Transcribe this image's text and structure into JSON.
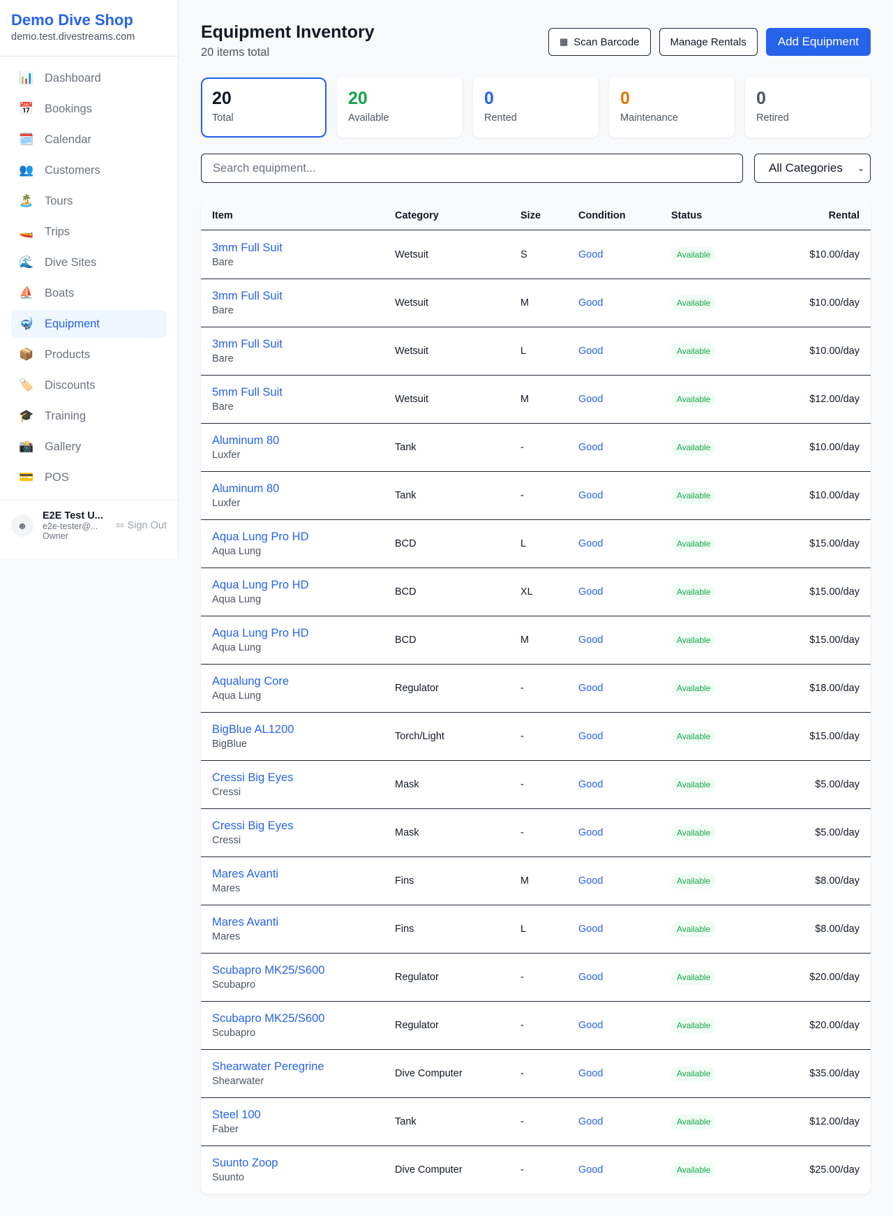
{
  "sidebar": {
    "brand": "Demo Dive Shop",
    "domain": "demo.test.divestreams.com",
    "items": [
      {
        "icon": "📊",
        "label": "Dashboard"
      },
      {
        "icon": "📅",
        "label": "Bookings"
      },
      {
        "icon": "🗓️",
        "label": "Calendar"
      },
      {
        "icon": "👥",
        "label": "Customers"
      },
      {
        "icon": "🏝️",
        "label": "Tours"
      },
      {
        "icon": "🚤",
        "label": "Trips"
      },
      {
        "icon": "🌊",
        "label": "Dive Sites"
      },
      {
        "icon": "⛵",
        "label": "Boats"
      },
      {
        "icon": "🤿",
        "label": "Equipment",
        "active": true
      },
      {
        "icon": "📦",
        "label": "Products"
      },
      {
        "icon": "🏷️",
        "label": "Discounts"
      },
      {
        "icon": "🎓",
        "label": "Training"
      },
      {
        "icon": "📸",
        "label": "Gallery"
      },
      {
        "icon": "💳",
        "label": "POS"
      }
    ],
    "user": {
      "name": "E2E Test U...",
      "email": "e2e-tester@...",
      "role": "Owner",
      "signout": "Sign Out"
    }
  },
  "header": {
    "title": "Equipment Inventory",
    "subtitle": "20 items total",
    "scan": "Scan Barcode",
    "manage": "Manage Rentals",
    "add": "Add Equipment"
  },
  "stats": [
    {
      "value": "20",
      "label": "Total",
      "color": "#111827"
    },
    {
      "value": "20",
      "label": "Available",
      "color": "#16a34a"
    },
    {
      "value": "0",
      "label": "Rented",
      "color": "#2563eb"
    },
    {
      "value": "0",
      "label": "Maintenance",
      "color": "#d97706"
    },
    {
      "value": "0",
      "label": "Retired",
      "color": "#4b5563"
    }
  ],
  "filters": {
    "search_placeholder": "Search equipment...",
    "category": "All Categories"
  },
  "table": {
    "headers": [
      "Item",
      "Category",
      "Size",
      "Condition",
      "Status",
      "Rental"
    ],
    "rows": [
      [
        "3mm Full Suit",
        "Bare",
        "Wetsuit",
        "S",
        "Good",
        "Available",
        "$10.00/day"
      ],
      [
        "3mm Full Suit",
        "Bare",
        "Wetsuit",
        "M",
        "Good",
        "Available",
        "$10.00/day"
      ],
      [
        "3mm Full Suit",
        "Bare",
        "Wetsuit",
        "L",
        "Good",
        "Available",
        "$10.00/day"
      ],
      [
        "5mm Full Suit",
        "Bare",
        "Wetsuit",
        "M",
        "Good",
        "Available",
        "$12.00/day"
      ],
      [
        "Aluminum 80",
        "Luxfer",
        "Tank",
        "-",
        "Good",
        "Available",
        "$10.00/day"
      ],
      [
        "Aluminum 80",
        "Luxfer",
        "Tank",
        "-",
        "Good",
        "Available",
        "$10.00/day"
      ],
      [
        "Aqua Lung Pro HD",
        "Aqua Lung",
        "BCD",
        "L",
        "Good",
        "Available",
        "$15.00/day"
      ],
      [
        "Aqua Lung Pro HD",
        "Aqua Lung",
        "BCD",
        "XL",
        "Good",
        "Available",
        "$15.00/day"
      ],
      [
        "Aqua Lung Pro HD",
        "Aqua Lung",
        "BCD",
        "M",
        "Good",
        "Available",
        "$15.00/day"
      ],
      [
        "Aqualung Core",
        "Aqua Lung",
        "Regulator",
        "-",
        "Good",
        "Available",
        "$18.00/day"
      ],
      [
        "BigBlue AL1200",
        "BigBlue",
        "Torch/Light",
        "-",
        "Good",
        "Available",
        "$15.00/day"
      ],
      [
        "Cressi Big Eyes",
        "Cressi",
        "Mask",
        "-",
        "Good",
        "Available",
        "$5.00/day"
      ],
      [
        "Cressi Big Eyes",
        "Cressi",
        "Mask",
        "-",
        "Good",
        "Available",
        "$5.00/day"
      ],
      [
        "Mares Avanti",
        "Mares",
        "Fins",
        "M",
        "Good",
        "Available",
        "$8.00/day"
      ],
      [
        "Mares Avanti",
        "Mares",
        "Fins",
        "L",
        "Good",
        "Available",
        "$8.00/day"
      ],
      [
        "Scubapro MK25/S600",
        "Scubapro",
        "Regulator",
        "-",
        "Good",
        "Available",
        "$20.00/day"
      ],
      [
        "Scubapro MK25/S600",
        "Scubapro",
        "Regulator",
        "-",
        "Good",
        "Available",
        "$20.00/day"
      ],
      [
        "Shearwater Peregrine",
        "Shearwater",
        "Dive Computer",
        "-",
        "Good",
        "Available",
        "$35.00/day"
      ],
      [
        "Steel 100",
        "Faber",
        "Tank",
        "-",
        "Good",
        "Available",
        "$12.00/day"
      ],
      [
        "Suunto Zoop",
        "Suunto",
        "Dive Computer",
        "-",
        "Good",
        "Available",
        "$25.00/day"
      ]
    ]
  }
}
